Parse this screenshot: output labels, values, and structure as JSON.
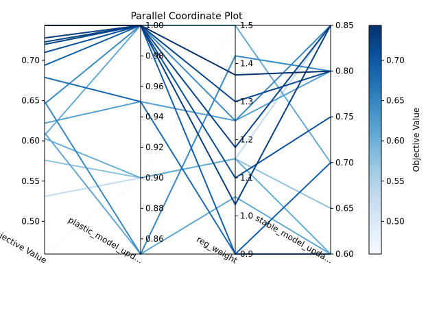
{
  "chart_data": {
    "type": "parallel-coordinates",
    "title": "Parallel Coordinate Plot",
    "axes": [
      {
        "label": "Objective Value",
        "range": [
          0.4593,
          0.7436
        ],
        "ticks": [
          0.5,
          0.55,
          0.6,
          0.65,
          0.7
        ],
        "tick_labels": [
          "0.50",
          "0.55",
          "0.60",
          "0.65",
          "0.70"
        ],
        "tick_side": "left"
      },
      {
        "label": "plastic_model_upd...",
        "range": [
          0.85,
          1.0
        ],
        "ticks": [
          0.86,
          0.88,
          0.9,
          0.92,
          0.94,
          0.96,
          0.98,
          1.0
        ],
        "tick_labels": [
          "0.86",
          "0.88",
          "0.90",
          "0.92",
          "0.94",
          "0.96",
          "0.98",
          "1.00"
        ],
        "tick_side": "right"
      },
      {
        "label": "reg_weight",
        "range": [
          0.9,
          1.5
        ],
        "ticks": [
          0.9,
          1.0,
          1.1,
          1.2,
          1.3,
          1.4,
          1.5
        ],
        "tick_labels": [
          "0.9",
          "1.0",
          "1.1",
          "1.2",
          "1.3",
          "1.4",
          "1.5"
        ],
        "tick_side": "right"
      },
      {
        "label": "stable_model_upda...",
        "range": [
          0.6,
          0.85
        ],
        "ticks": [
          0.6,
          0.65,
          0.7,
          0.75,
          0.8,
          0.85
        ],
        "tick_labels": [
          "0.60",
          "0.65",
          "0.70",
          "0.75",
          "0.80",
          "0.85"
        ],
        "tick_side": "right"
      }
    ],
    "lines": [
      [
        0.4593,
        0.9,
        1.5,
        0.85
      ],
      [
        0.531,
        0.9,
        1.15,
        0.85
      ],
      [
        0.576,
        0.9,
        1.15,
        0.65
      ],
      [
        0.603,
        0.9,
        1.15,
        0.6
      ],
      [
        0.61,
        0.85,
        1.05,
        0.6
      ],
      [
        0.607,
        1.0,
        1.5,
        0.7
      ],
      [
        0.622,
        0.95,
        1.25,
        0.8
      ],
      [
        0.646,
        1.0,
        1.25,
        0.85
      ],
      [
        0.649,
        0.85,
        1.42,
        0.8
      ],
      [
        0.679,
        0.95,
        0.9,
        0.6
      ],
      [
        0.694,
        1.0,
        0.9,
        0.7
      ],
      [
        0.71,
        1.0,
        1.1,
        0.75
      ],
      [
        0.72,
        1.0,
        1.3,
        0.8
      ],
      [
        0.723,
        1.0,
        1.18,
        0.85
      ],
      [
        0.728,
        1.0,
        1.03,
        0.85
      ],
      [
        0.7436,
        1.0,
        1.37,
        0.8
      ]
    ],
    "color_by": "Objective Value",
    "colorscale": "Blues",
    "colorbar": {
      "label": "Objective Value",
      "range": [
        0.4593,
        0.7436
      ],
      "ticks": [
        0.5,
        0.55,
        0.6,
        0.65,
        0.7
      ],
      "tick_labels": [
        "0.50",
        "0.55",
        "0.60",
        "0.65",
        "0.70"
      ]
    },
    "grid": false
  }
}
